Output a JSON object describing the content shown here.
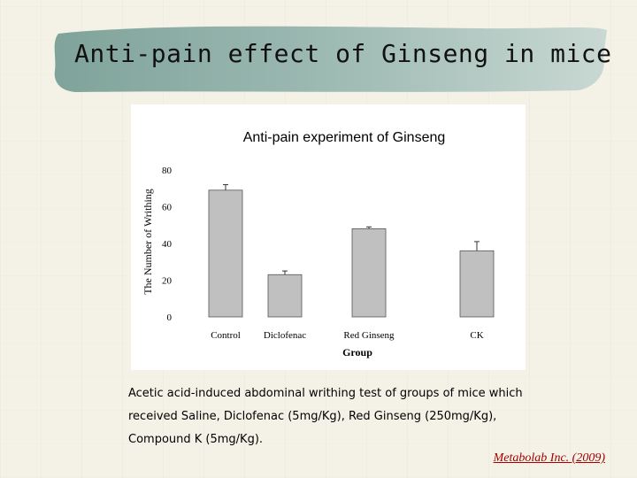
{
  "slide": {
    "title": "Anti-pain effect of Ginseng in mice",
    "caption": "Acetic acid-induced abdominal writhing test of groups of mice which received Saline, Diclofenac (5mg/Kg), Red Ginseng (250mg/Kg), Compound K (5mg/Kg).",
    "credit": "Metabolab Inc. (2009)"
  },
  "colors": {
    "background": "#f4f1e6",
    "title_band": "#8fb0a8",
    "bar_fill": "#c0c0c0",
    "credit": "#a40000"
  },
  "chart_data": {
    "type": "bar",
    "title": "Anti-pain experiment of Ginseng",
    "xlabel": "Group",
    "ylabel": "The Number of Writhing",
    "categories": [
      "Control",
      "Diclofenac",
      "Red Ginseng",
      "CK"
    ],
    "values": [
      69,
      23,
      48,
      36
    ],
    "error": [
      3,
      2,
      1,
      5
    ],
    "ylim": [
      0,
      80
    ],
    "yticks": [
      0,
      20,
      40,
      60,
      80
    ],
    "grid": false,
    "legend": "none"
  }
}
